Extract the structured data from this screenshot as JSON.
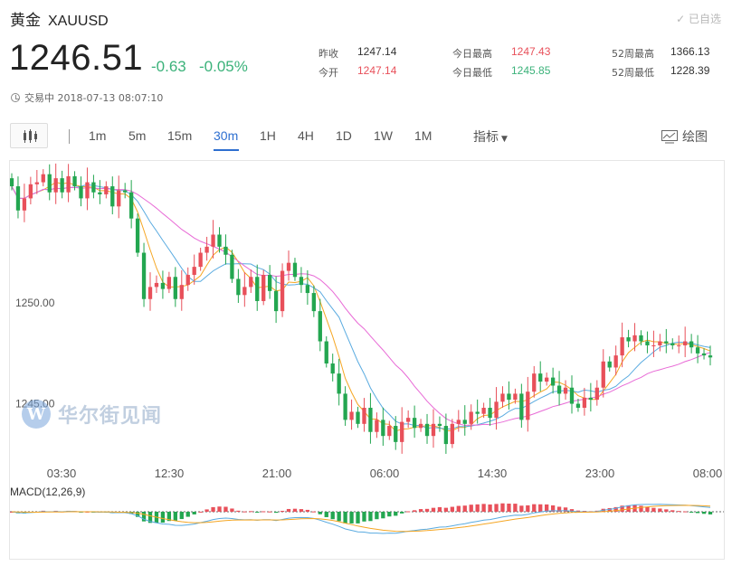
{
  "header": {
    "title": "黄金",
    "symbol": "XAUUSD",
    "watch_label": "已自选"
  },
  "quote": {
    "price": "1246.51",
    "change": "-0.63",
    "change_pct": "-0.05%"
  },
  "stats": [
    {
      "label": "昨收",
      "value": "1247.14",
      "color": "neutral"
    },
    {
      "label": "今日最高",
      "value": "1247.43",
      "color": "red"
    },
    {
      "label": "52周最高",
      "value": "1366.13",
      "color": "neutral"
    },
    {
      "label": "今开",
      "value": "1247.14",
      "color": "red"
    },
    {
      "label": "今日最低",
      "value": "1245.85",
      "color": "green"
    },
    {
      "label": "52周最低",
      "value": "1228.39",
      "color": "neutral"
    }
  ],
  "status": {
    "text": "交易中 2018-07-13 08:07:10"
  },
  "toolbar": {
    "timeframes": [
      "1m",
      "5m",
      "15m",
      "30m",
      "1H",
      "4H",
      "1D",
      "1W",
      "1M"
    ],
    "active_timeframe": "30m",
    "indicator_label": "指标",
    "draw_label": "绘图"
  },
  "watermark": {
    "text": "华尔街见闻"
  },
  "colors": {
    "up": "#e8505a",
    "down": "#23a650",
    "accent": "#2e6fd0",
    "ma_fast": "#f5a623",
    "ma_mid": "#5aabe0",
    "ma_slow": "#e86ad6"
  },
  "chart_data": {
    "type": "candlestick",
    "ylim": [
      1242.6,
      1256.7
    ],
    "yticks": [
      "1250.00",
      "1245.00"
    ],
    "xticks": [
      "03:30",
      "12:30",
      "21:00",
      "06:00",
      "14:30",
      "23:00",
      "08:00"
    ],
    "closes": [
      1255.8,
      1254.6,
      1255.2,
      1255.9,
      1256.0,
      1256.4,
      1255.5,
      1256.2,
      1255.5,
      1256.3,
      1255.8,
      1255.2,
      1256.0,
      1255.5,
      1255.4,
      1255.8,
      1254.8,
      1255.6,
      1255.5,
      1254.2,
      1252.5,
      1250.2,
      1250.8,
      1251.0,
      1250.7,
      1251.3,
      1250.2,
      1250.9,
      1251.4,
      1251.8,
      1252.5,
      1252.8,
      1253.4,
      1252.8,
      1252.4,
      1251.2,
      1250.4,
      1250.8,
      1251.3,
      1250.1,
      1251.4,
      1250.6,
      1249.6,
      1251.6,
      1252.0,
      1251.3,
      1250.9,
      1250.5,
      1249.6,
      1248.1,
      1247.0,
      1246.5,
      1245.5,
      1244.2,
      1244.6,
      1244.0,
      1244.8,
      1243.6,
      1244.2,
      1243.4,
      1243.9,
      1243.1,
      1244.1,
      1244.3,
      1243.8,
      1244.0,
      1243.4,
      1244.0,
      1243.9,
      1243.0,
      1244.0,
      1244.2,
      1244.0,
      1244.6,
      1244.5,
      1244.8,
      1244.3,
      1245.1,
      1245.5,
      1245.2,
      1245.5,
      1244.2,
      1245.6,
      1246.5,
      1246.1,
      1246.3,
      1245.9,
      1245.5,
      1245.8,
      1245.0,
      1244.8,
      1245.3,
      1245.2,
      1245.8,
      1247.1,
      1246.8,
      1247.4,
      1248.3,
      1248.1,
      1248.4,
      1248.1,
      1247.9,
      1247.9,
      1248.1,
      1248.0,
      1247.9,
      1247.9,
      1248.1,
      1247.8,
      1247.5,
      1247.4,
      1247.3
    ]
  }
}
